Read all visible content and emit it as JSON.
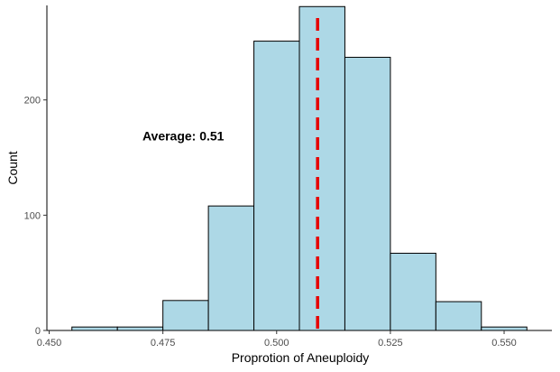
{
  "chart_data": {
    "type": "histogram",
    "title": "",
    "xlabel": "Proprotion of Aneuploidy",
    "ylabel": "Count",
    "xlim": [
      0.4495,
      0.5605
    ],
    "ylim": [
      0,
      282
    ],
    "x_ticks": [
      0.45,
      0.475,
      0.5,
      0.525,
      0.55
    ],
    "x_tick_labels": [
      "0.450",
      "0.475",
      "0.500",
      "0.525",
      "0.550"
    ],
    "y_ticks": [
      0,
      100,
      200
    ],
    "y_tick_labels": [
      "0",
      "100",
      "200"
    ],
    "bins": [
      {
        "x0": 0.455,
        "x1": 0.465,
        "count": 3
      },
      {
        "x0": 0.465,
        "x1": 0.475,
        "count": 3
      },
      {
        "x0": 0.475,
        "x1": 0.485,
        "count": 26
      },
      {
        "x0": 0.485,
        "x1": 0.495,
        "count": 108
      },
      {
        "x0": 0.495,
        "x1": 0.505,
        "count": 251
      },
      {
        "x0": 0.505,
        "x1": 0.515,
        "count": 281
      },
      {
        "x0": 0.515,
        "x1": 0.525,
        "count": 237
      },
      {
        "x0": 0.525,
        "x1": 0.535,
        "count": 67
      },
      {
        "x0": 0.535,
        "x1": 0.545,
        "count": 25
      },
      {
        "x0": 0.545,
        "x1": 0.555,
        "count": 3
      }
    ],
    "mean_line": {
      "x": 0.509,
      "color": "#e60000",
      "style": "dashed"
    },
    "annotation": {
      "text": "Average:  0.51",
      "x": 0.4705,
      "y": 169
    },
    "bar_fill": "#add8e6",
    "bar_stroke": "#000000",
    "grid": false,
    "legend": "none"
  }
}
